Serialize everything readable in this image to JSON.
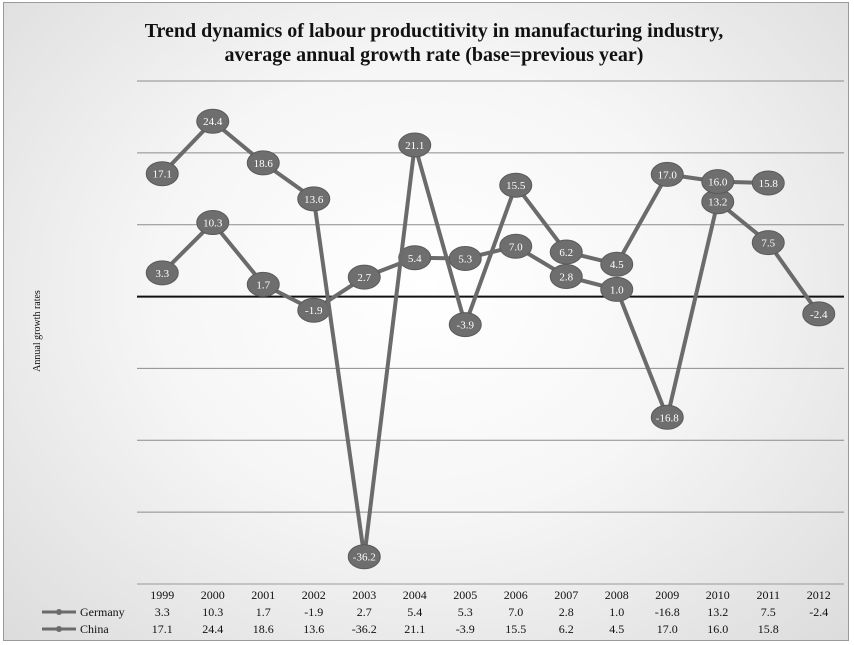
{
  "chart_data": {
    "type": "line",
    "title_lines": [
      "Trend dynamics of labour productitivity in manufacturing industry,",
      "average annual growth rate (base=previous year)"
    ],
    "xlabel": "",
    "ylabel": "Annual growth rates",
    "ylim": [
      -40,
      30
    ],
    "grid": true,
    "legend": "data-table-left",
    "categories": [
      "1999",
      "2000",
      "2001",
      "2002",
      "2003",
      "2004",
      "2005",
      "2006",
      "2007",
      "2008",
      "2009",
      "2010",
      "2011",
      "2012"
    ],
    "series": [
      {
        "name": "Germany",
        "values": [
          3.3,
          10.3,
          1.7,
          -1.9,
          2.7,
          5.4,
          5.3,
          7.0,
          2.8,
          1.0,
          -16.8,
          13.2,
          7.5,
          -2.4
        ],
        "labels": [
          "3.3",
          "10.3",
          "1.7",
          "-1.9",
          "2.7",
          "5.4",
          "5.3",
          "7.0",
          "2.8",
          "1.0",
          "-16.8",
          "13.2",
          "7.5",
          "-2.4"
        ],
        "color": "#6b6b6b"
      },
      {
        "name": "China",
        "values": [
          17.1,
          24.4,
          18.6,
          13.6,
          -36.2,
          21.1,
          -3.9,
          15.5,
          6.2,
          4.5,
          17.0,
          16.0,
          15.8,
          null
        ],
        "labels": [
          "17.1",
          "24.4",
          "18.6",
          "13.6",
          "-36.2",
          "21.1",
          "-3.9",
          "15.5",
          "6.2",
          "4.5",
          "17.0",
          "16.0",
          "15.8",
          ""
        ],
        "color": "#6b6b6b"
      }
    ]
  }
}
